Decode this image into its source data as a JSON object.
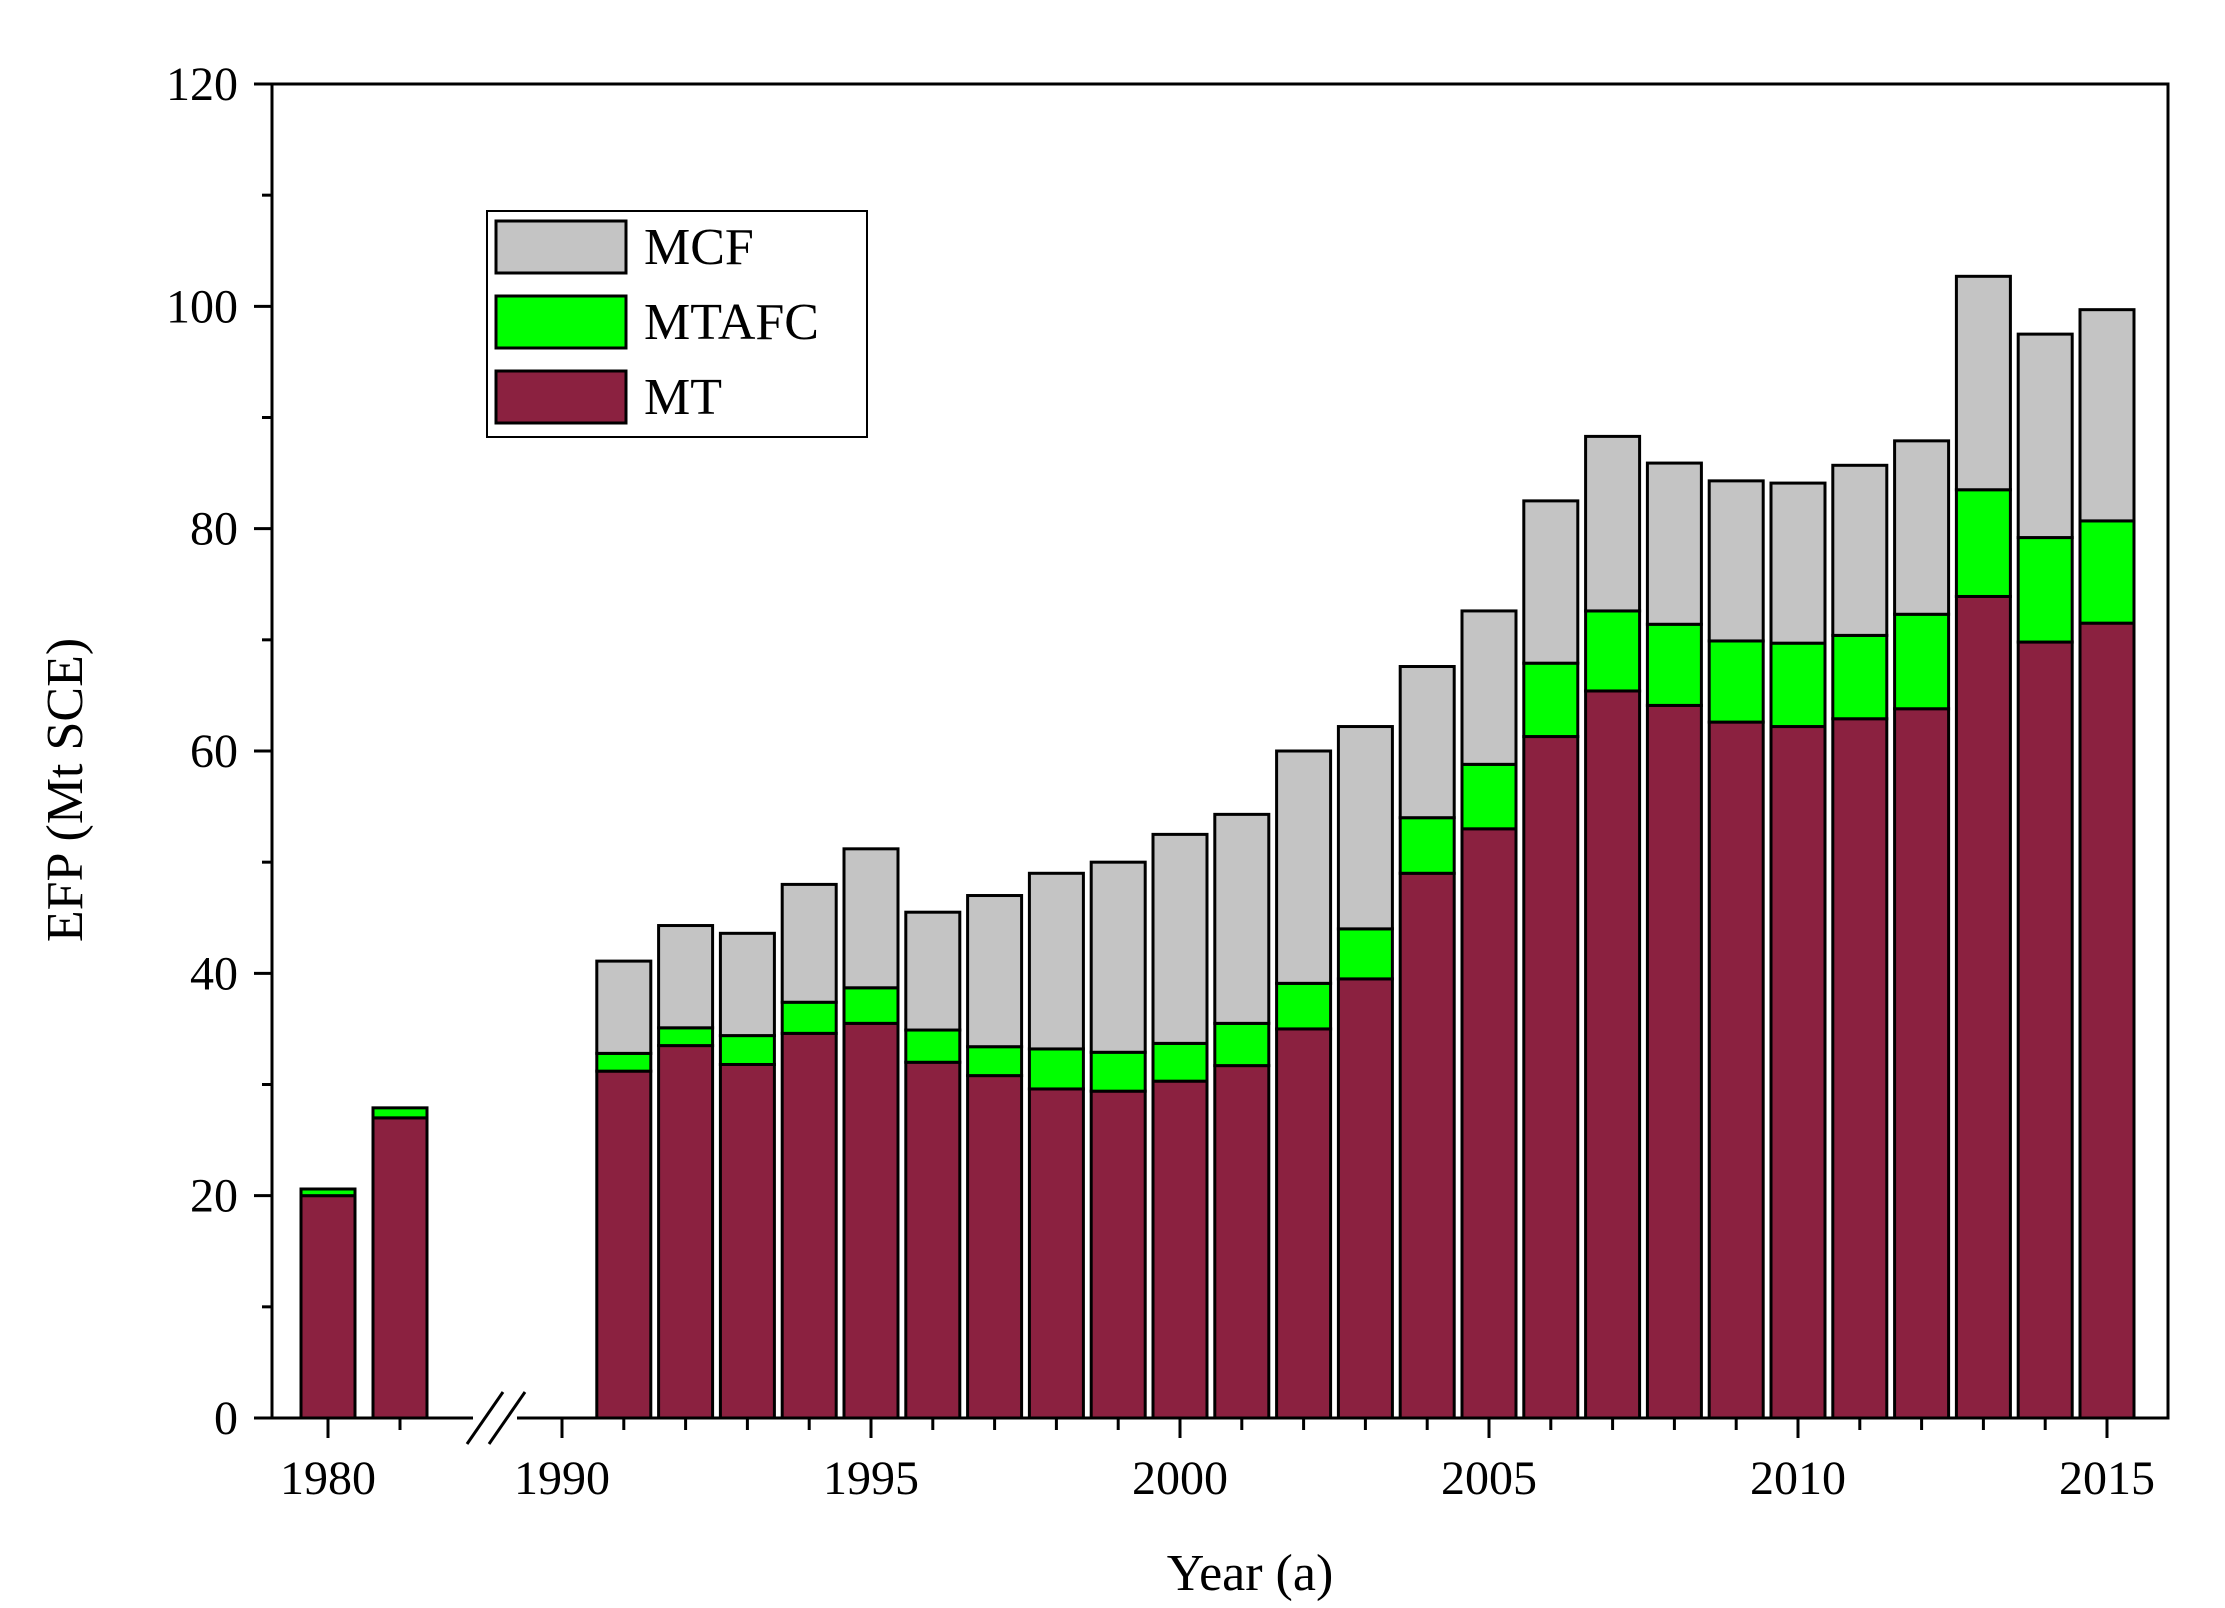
{
  "colors": {
    "MT": "#8b2140",
    "MTAFC": "#00ff00",
    "MCF": "#c4c4c4"
  },
  "chart_data": {
    "type": "bar",
    "stacked": true,
    "title": "",
    "xlabel": "Year (a)",
    "ylabel": "EFP (Mt SCE)",
    "ylim": [
      0,
      120
    ],
    "y_ticks": [
      0,
      20,
      40,
      60,
      80,
      100,
      120
    ],
    "x_tick_labels": [
      "1980",
      "1990",
      "1995",
      "2000",
      "2005",
      "2010",
      "2015"
    ],
    "axis_break": "between 1981 and 1990",
    "legend": {
      "position": "top-left",
      "entries": [
        "MCF",
        "MTAFC",
        "MT"
      ]
    },
    "categories": [
      1980,
      1981,
      1991,
      1992,
      1993,
      1994,
      1995,
      1996,
      1997,
      1998,
      1999,
      2000,
      2001,
      2002,
      2003,
      2004,
      2005,
      2006,
      2007,
      2008,
      2009,
      2010,
      2011,
      2012,
      2013,
      2014,
      2015
    ],
    "series": [
      {
        "name": "MT",
        "values": [
          20,
          27,
          31.2,
          33.5,
          31.8,
          34.6,
          35.5,
          32,
          30.8,
          29.6,
          29.4,
          30.3,
          31.7,
          35,
          39.5,
          49,
          53,
          61.3,
          65.4,
          64.1,
          62.6,
          62.2,
          62.9,
          63.8,
          73.9,
          69.8,
          71.5
        ]
      },
      {
        "name": "MTAFC",
        "values": [
          0.6,
          0.9,
          1.6,
          1.6,
          2.6,
          2.8,
          3.2,
          2.9,
          2.6,
          3.6,
          3.5,
          3.4,
          3.8,
          4.1,
          4.5,
          5,
          5.8,
          6.6,
          7.2,
          7.3,
          7.3,
          7.5,
          7.5,
          8.5,
          9.6,
          9.4,
          9.2
        ]
      },
      {
        "name": "MCF",
        "values": [
          0,
          0,
          8.3,
          9.2,
          9.2,
          10.6,
          12.5,
          10.6,
          13.6,
          15.8,
          17.1,
          18.8,
          18.8,
          20.9,
          18.2,
          13.6,
          13.8,
          14.6,
          15.7,
          14.5,
          14.4,
          14.4,
          15.3,
          15.6,
          19.2,
          18.3,
          19
        ]
      }
    ]
  }
}
